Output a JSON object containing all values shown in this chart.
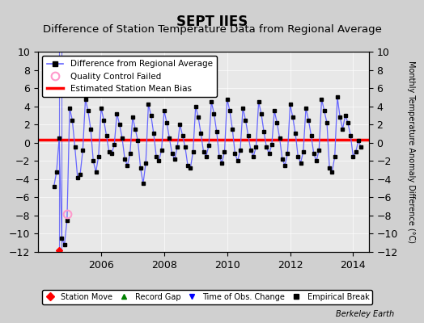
{
  "title": "SEPT IIES",
  "subtitle": "Difference of Station Temperature Data from Regional Average",
  "ylabel_right": "Monthly Temperature Anomaly Difference (°C)",
  "xlim": [
    2004.0,
    2014.5
  ],
  "ylim": [
    -12,
    10
  ],
  "yticks": [
    -12,
    -10,
    -8,
    -6,
    -4,
    -2,
    0,
    2,
    4,
    6,
    8,
    10
  ],
  "xticks": [
    2006,
    2008,
    2010,
    2012,
    2014
  ],
  "bias_level": 0.3,
  "bias_color": "#ff0000",
  "line_color": "#6666ff",
  "marker_color": "#000000",
  "qc_fail_x": 2004.92,
  "qc_fail_y": -7.8,
  "station_move_x": 2004.67,
  "station_move_y": -11.8,
  "background_color": "#e8e8e8",
  "fig_background": "#d0d0d0",
  "title_fontsize": 12,
  "subtitle_fontsize": 9.5,
  "data_x": [
    2004.5,
    2004.583,
    2004.667,
    2004.75,
    2004.833,
    2004.917,
    2005.0,
    2005.083,
    2005.167,
    2005.25,
    2005.333,
    2005.417,
    2005.5,
    2005.583,
    2005.667,
    2005.75,
    2005.833,
    2005.917,
    2006.0,
    2006.083,
    2006.167,
    2006.25,
    2006.333,
    2006.417,
    2006.5,
    2006.583,
    2006.667,
    2006.75,
    2006.833,
    2006.917,
    2007.0,
    2007.083,
    2007.167,
    2007.25,
    2007.333,
    2007.417,
    2007.5,
    2007.583,
    2007.667,
    2007.75,
    2007.833,
    2007.917,
    2008.0,
    2008.083,
    2008.167,
    2008.25,
    2008.333,
    2008.417,
    2008.5,
    2008.583,
    2008.667,
    2008.75,
    2008.833,
    2008.917,
    2009.0,
    2009.083,
    2009.167,
    2009.25,
    2009.333,
    2009.417,
    2009.5,
    2009.583,
    2009.667,
    2009.75,
    2009.833,
    2009.917,
    2010.0,
    2010.083,
    2010.167,
    2010.25,
    2010.333,
    2010.417,
    2010.5,
    2010.583,
    2010.667,
    2010.75,
    2010.833,
    2010.917,
    2011.0,
    2011.083,
    2011.167,
    2011.25,
    2011.333,
    2011.417,
    2011.5,
    2011.583,
    2011.667,
    2011.75,
    2011.833,
    2011.917,
    2012.0,
    2012.083,
    2012.167,
    2012.25,
    2012.333,
    2012.417,
    2012.5,
    2012.583,
    2012.667,
    2012.75,
    2012.833,
    2012.917,
    2013.0,
    2013.083,
    2013.167,
    2013.25,
    2013.333,
    2013.417,
    2013.5,
    2013.583,
    2013.667,
    2013.75,
    2013.833,
    2013.917,
    2014.0,
    2014.083,
    2014.167,
    2014.25
  ],
  "data_y": [
    -4.8,
    -3.2,
    0.5,
    -10.5,
    -11.2,
    -8.5,
    3.8,
    2.5,
    -0.5,
    -3.8,
    -3.5,
    -0.8,
    4.8,
    3.5,
    1.5,
    -2.0,
    -3.2,
    -1.5,
    3.8,
    2.5,
    0.8,
    -1.0,
    -1.2,
    -0.2,
    3.2,
    2.0,
    0.5,
    -1.8,
    -2.5,
    -1.2,
    2.8,
    1.5,
    0.2,
    -2.8,
    -4.5,
    -2.2,
    4.2,
    3.0,
    1.0,
    -1.5,
    -2.0,
    -0.8,
    3.5,
    2.2,
    0.5,
    -1.2,
    -1.8,
    -0.5,
    2.0,
    0.8,
    -0.5,
    -2.5,
    -2.8,
    -1.0,
    4.0,
    2.8,
    1.0,
    -1.0,
    -1.5,
    -0.3,
    4.5,
    3.2,
    1.2,
    -1.5,
    -2.2,
    -1.0,
    4.8,
    3.5,
    1.5,
    -1.2,
    -2.0,
    -0.8,
    3.8,
    2.5,
    0.8,
    -0.8,
    -1.5,
    -0.5,
    4.5,
    3.2,
    1.2,
    -0.5,
    -1.2,
    -0.2,
    3.5,
    2.2,
    0.5,
    -1.8,
    -2.5,
    -1.2,
    4.2,
    2.8,
    1.0,
    -1.5,
    -2.2,
    -1.0,
    3.8,
    2.5,
    0.8,
    -1.2,
    -2.0,
    -0.8,
    4.8,
    3.5,
    2.2,
    -2.8,
    -3.2,
    -1.5,
    5.0,
    2.8,
    1.5,
    3.0,
    2.2,
    0.8,
    -1.5,
    -1.0,
    0.2,
    -0.5
  ]
}
